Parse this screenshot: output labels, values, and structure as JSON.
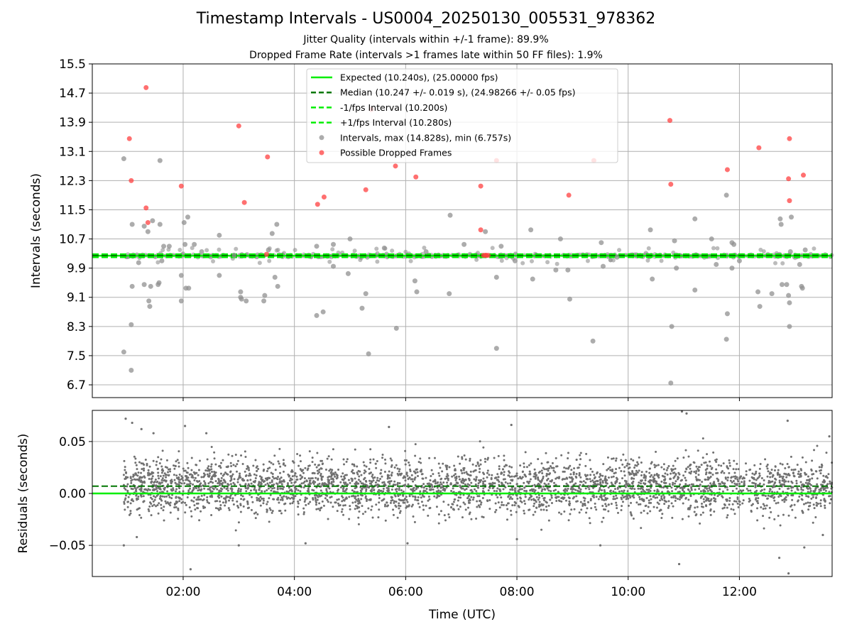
{
  "figure": {
    "title": "Timestamp Intervals - US0004_20250130_005531_978362",
    "subtitle1": "Jitter Quality (intervals within +/-1 frame): 89.9%",
    "subtitle2": "Dropped Frame Rate (intervals >1 frames late within 50 FF files): 1.9%"
  },
  "colors": {
    "expected": "#00ee00",
    "median": "#007700",
    "fps_interval": "#00ee00",
    "intervals": "#909090",
    "dropped": "#ff4040",
    "residuals": "#707070",
    "grid": "#b0b0b0"
  },
  "chart_data": [
    {
      "type": "scatter",
      "xlabel": "",
      "ylabel": "Intervals (seconds)",
      "xlim": [
        "00:22",
        "13:40"
      ],
      "ylim": [
        6.35,
        15.5
      ],
      "yticks": [
        "6.7",
        "7.5",
        "8.3",
        "9.1",
        "9.9",
        "10.7",
        "11.5",
        "12.3",
        "13.1",
        "13.9",
        "14.7",
        "15.5"
      ],
      "grid": true,
      "legend_position": "top-center",
      "legend": [
        "Expected (10.240s), (25.00000 fps)",
        "Median (10.247 +/- 0.019 s), (24.98266 +/- 0.05 fps)",
        "-1/fps Interval (10.200s)",
        "+1/fps Interval (10.280s)",
        "Intervals, max (14.828s), min (6.757s)",
        "Possible Dropped Frames"
      ],
      "lines": {
        "expected": 10.24,
        "median": 10.247,
        "minus_fps": 10.2,
        "plus_fps": 10.28
      },
      "series": [
        {
          "name": "Intervals, max (14.828s), min (6.757s)",
          "points": [
            [
              "00:56",
              12.9
            ],
            [
              "00:56",
              7.6
            ],
            [
              "01:04",
              7.1
            ],
            [
              "01:04",
              8.35
            ],
            [
              "01:05",
              11.1
            ],
            [
              "01:05",
              9.4
            ],
            [
              "01:12",
              10.05
            ],
            [
              "01:18",
              9.45
            ],
            [
              "01:18",
              11.05
            ],
            [
              "01:22",
              10.9
            ],
            [
              "01:23",
              9.0
            ],
            [
              "01:24",
              8.85
            ],
            [
              "01:25",
              9.4
            ],
            [
              "01:27",
              11.2
            ],
            [
              "01:33",
              9.45
            ],
            [
              "01:34",
              9.5
            ],
            [
              "01:35",
              12.85
            ],
            [
              "01:35",
              11.1
            ],
            [
              "01:37",
              10.1
            ],
            [
              "01:39",
              10.5
            ],
            [
              "01:45",
              10.5
            ],
            [
              "01:58",
              9.0
            ],
            [
              "01:58",
              9.7
            ],
            [
              "02:01",
              11.15
            ],
            [
              "02:02",
              10.55
            ],
            [
              "02:03",
              9.35
            ],
            [
              "02:06",
              9.35
            ],
            [
              "02:05",
              11.3
            ],
            [
              "02:12",
              10.55
            ],
            [
              "02:20",
              10.35
            ],
            [
              "02:39",
              10.8
            ],
            [
              "02:39",
              9.7
            ],
            [
              "02:55",
              10.25
            ],
            [
              "03:02",
              9.25
            ],
            [
              "03:02",
              9.1
            ],
            [
              "03:03",
              9.05
            ],
            [
              "03:08",
              9.0
            ],
            [
              "03:27",
              9.0
            ],
            [
              "03:28",
              9.15
            ],
            [
              "03:32",
              10.4
            ],
            [
              "03:36",
              10.85
            ],
            [
              "03:39",
              9.65
            ],
            [
              "03:41",
              11.1
            ],
            [
              "03:42",
              9.4
            ],
            [
              "04:24",
              10.5
            ],
            [
              "04:24",
              8.6
            ],
            [
              "04:31",
              8.7
            ],
            [
              "04:42",
              10.55
            ],
            [
              "04:42",
              9.95
            ],
            [
              "04:58",
              9.75
            ],
            [
              "05:00",
              10.7
            ],
            [
              "05:13",
              8.8
            ],
            [
              "05:17",
              9.2
            ],
            [
              "05:20",
              7.55
            ],
            [
              "05:37",
              10.45
            ],
            [
              "05:50",
              8.25
            ],
            [
              "06:10",
              9.55
            ],
            [
              "06:12",
              9.25
            ],
            [
              "06:22",
              10.35
            ],
            [
              "06:47",
              9.2
            ],
            [
              "06:48",
              11.35
            ],
            [
              "07:03",
              10.55
            ],
            [
              "07:26",
              10.9
            ],
            [
              "07:38",
              9.65
            ],
            [
              "07:38",
              7.7
            ],
            [
              "07:43",
              10.5
            ],
            [
              "07:58",
              10.1
            ],
            [
              "08:17",
              9.6
            ],
            [
              "08:15",
              10.95
            ],
            [
              "08:42",
              9.85
            ],
            [
              "08:47",
              10.7
            ],
            [
              "08:55",
              9.85
            ],
            [
              "08:57",
              9.05
            ],
            [
              "09:22",
              7.9
            ],
            [
              "09:33",
              9.95
            ],
            [
              "09:31",
              10.6
            ],
            [
              "09:48",
              10.2
            ],
            [
              "10:24",
              10.95
            ],
            [
              "10:26",
              9.6
            ],
            [
              "10:46",
              6.75
            ],
            [
              "10:47",
              8.3
            ],
            [
              "10:52",
              9.9
            ],
            [
              "10:50",
              10.65
            ],
            [
              "11:12",
              9.3
            ],
            [
              "11:12",
              11.25
            ],
            [
              "11:30",
              10.7
            ],
            [
              "11:35",
              10.0
            ],
            [
              "11:46",
              11.9
            ],
            [
              "11:47",
              8.65
            ],
            [
              "11:46",
              7.95
            ],
            [
              "11:52",
              9.9
            ],
            [
              "11:52",
              10.6
            ],
            [
              "11:54",
              10.55
            ],
            [
              "12:00",
              10.1
            ],
            [
              "12:20",
              9.25
            ],
            [
              "12:22",
              8.85
            ],
            [
              "12:35",
              9.2
            ],
            [
              "12:44",
              11.25
            ],
            [
              "12:45",
              11.1
            ],
            [
              "12:46",
              9.45
            ],
            [
              "12:51",
              9.45
            ],
            [
              "12:53",
              9.15
            ],
            [
              "12:54",
              8.3
            ],
            [
              "12:54",
              8.95
            ],
            [
              "12:55",
              10.35
            ],
            [
              "12:56",
              11.3
            ],
            [
              "13:08",
              9.35
            ],
            [
              "13:07",
              9.4
            ],
            [
              "13:11",
              10.4
            ],
            [
              "13:05",
              10.0
            ]
          ]
        },
        {
          "name": "Possible Dropped Frames",
          "points": [
            [
              "01:02",
              13.45
            ],
            [
              "01:04",
              12.3
            ],
            [
              "01:20",
              14.85
            ],
            [
              "01:20",
              11.55
            ],
            [
              "01:22",
              11.15
            ],
            [
              "01:58",
              12.15
            ],
            [
              "03:00",
              13.8
            ],
            [
              "03:06",
              11.7
            ],
            [
              "03:31",
              12.95
            ],
            [
              "04:25",
              11.65
            ],
            [
              "04:32",
              11.85
            ],
            [
              "05:17",
              12.05
            ],
            [
              "05:23",
              14.25
            ],
            [
              "05:49",
              12.7
            ],
            [
              "06:11",
              12.4
            ],
            [
              "07:21",
              12.15
            ],
            [
              "07:21",
              10.95
            ],
            [
              "07:38",
              12.85
            ],
            [
              "08:56",
              11.9
            ],
            [
              "09:23",
              12.85
            ],
            [
              "10:45",
              13.95
            ],
            [
              "10:46",
              12.2
            ],
            [
              "11:47",
              12.6
            ],
            [
              "12:21",
              13.2
            ],
            [
              "12:53",
              12.35
            ],
            [
              "12:54",
              13.45
            ],
            [
              "12:54",
              11.75
            ],
            [
              "13:09",
              12.45
            ],
            [
              "07:24",
              10.25
            ],
            [
              "07:26",
              10.25
            ],
            [
              "07:27",
              10.25
            ],
            [
              "07:29",
              10.25
            ],
            [
              "03:30",
              10.28
            ]
          ]
        }
      ]
    },
    {
      "type": "scatter",
      "xlabel": "Time (UTC)",
      "ylabel": "Residuals (seconds)",
      "xlim": [
        "00:22",
        "13:40"
      ],
      "ylim": [
        -0.08,
        0.08
      ],
      "xticks": [
        "02:00",
        "04:00",
        "06:00",
        "08:00",
        "10:00",
        "12:00"
      ],
      "yticks": [
        "−0.05",
        "0.00",
        "0.05"
      ],
      "grid": true,
      "lines": {
        "expected": 0.0,
        "median": 0.007
      },
      "series": [
        {
          "name": "Residuals",
          "points": [
            [
              "00:58",
              0.072
            ],
            [
              "01:05",
              0.068
            ],
            [
              "01:15",
              0.062
            ],
            [
              "01:28",
              0.058
            ],
            [
              "02:02",
              0.065
            ],
            [
              "02:08",
              -0.073
            ],
            [
              "02:25",
              0.058
            ],
            [
              "03:00",
              -0.05
            ],
            [
              "04:12",
              -0.048
            ],
            [
              "06:02",
              -0.048
            ],
            [
              "08:00",
              -0.044
            ],
            [
              "09:30",
              -0.05
            ],
            [
              "10:55",
              -0.068
            ],
            [
              "10:58",
              0.079
            ],
            [
              "11:03",
              0.077
            ],
            [
              "12:43",
              -0.062
            ],
            [
              "12:53",
              -0.077
            ],
            [
              "12:52",
              0.07
            ],
            [
              "13:30",
              -0.04
            ],
            [
              "13:37",
              0.055
            ],
            [
              "05:42",
              0.064
            ],
            [
              "07:54",
              0.066
            ],
            [
              "00:56",
              -0.05
            ],
            [
              "01:10",
              -0.042
            ],
            [
              "13:10",
              -0.052
            ]
          ]
        }
      ]
    }
  ]
}
